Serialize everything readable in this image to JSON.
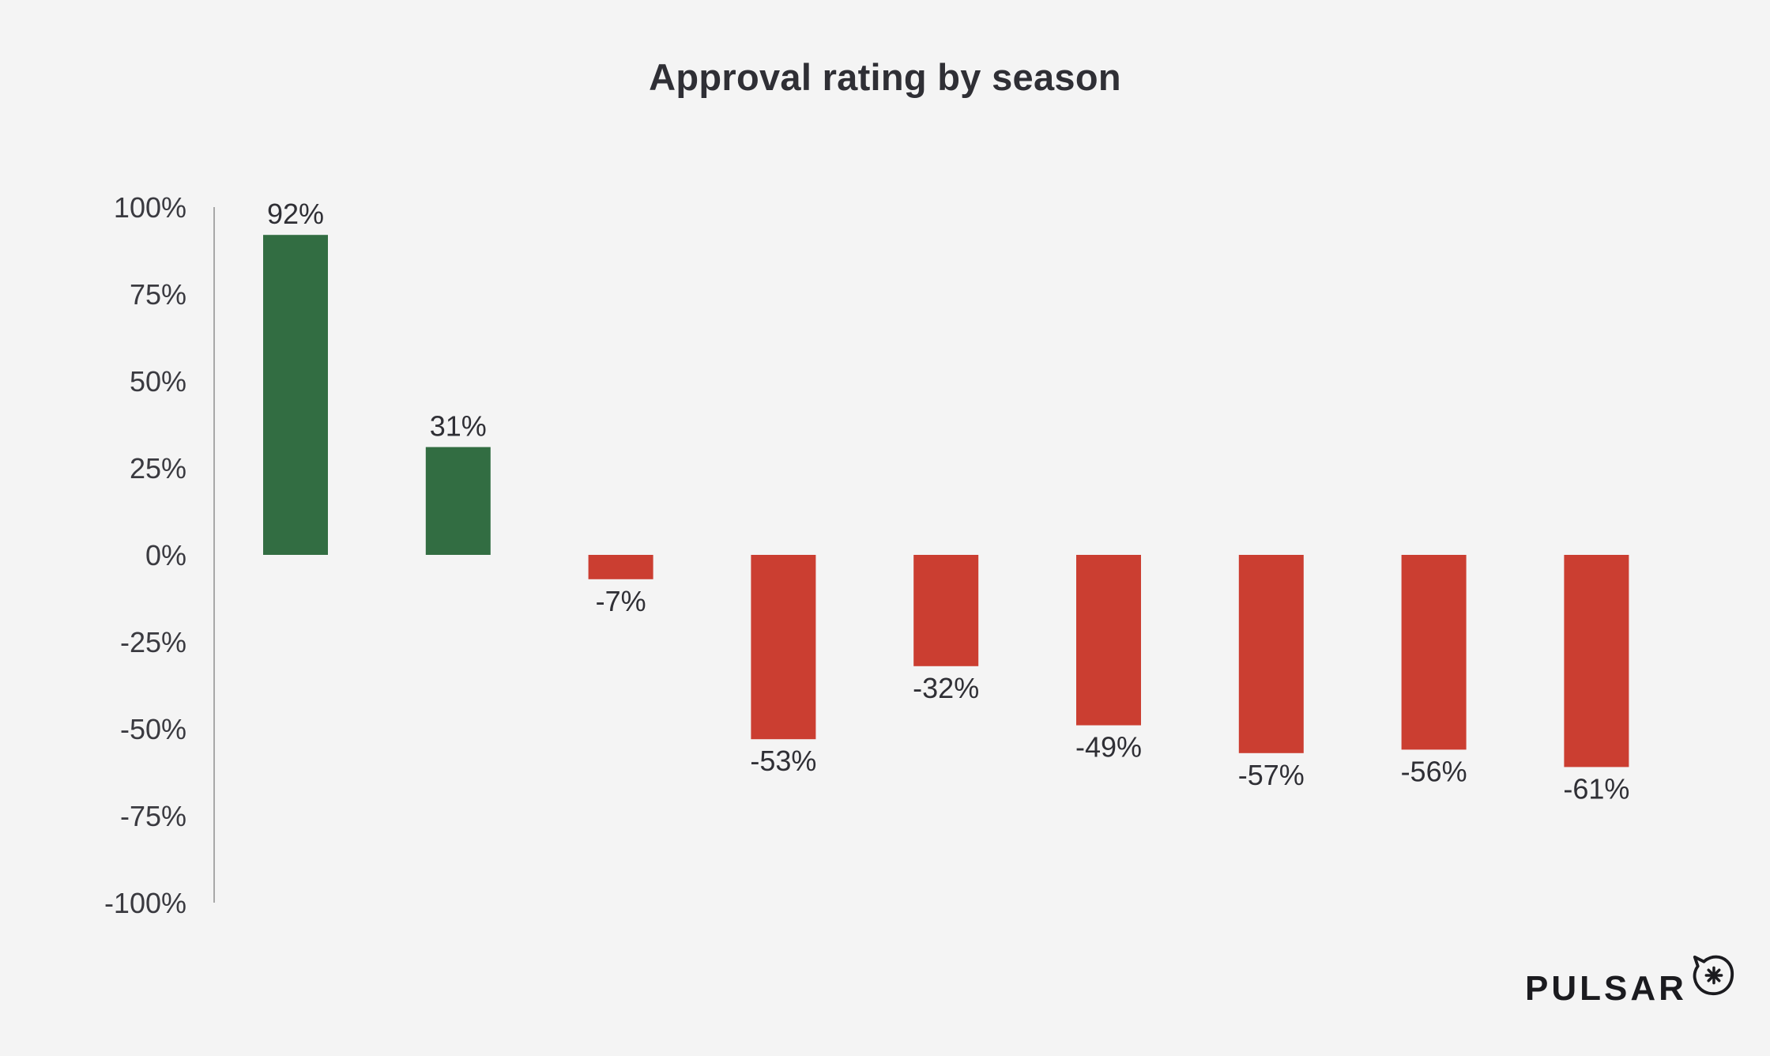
{
  "chart_data": {
    "type": "bar",
    "title": "Approval rating by season",
    "xlabel": "",
    "ylabel": "",
    "ylim": [
      -100,
      100
    ],
    "yticks": [
      100,
      75,
      50,
      25,
      0,
      -25,
      -50,
      -75,
      -100
    ],
    "ytick_labels": [
      "100%",
      "75%",
      "50%",
      "25%",
      "0%",
      "-25%",
      "-50%",
      "-75%",
      "-100%"
    ],
    "categories": [
      "",
      "",
      "",
      "",
      "",
      "",
      "",
      "",
      ""
    ],
    "values": [
      92,
      31,
      -7,
      -53,
      -32,
      -49,
      -57,
      -56,
      -61
    ],
    "data_labels": [
      "92%",
      "31%",
      "-7%",
      "-53%",
      "-32%",
      "-49%",
      "-57%",
      "-56%",
      "-61%"
    ],
    "colors": {
      "positive": "#326d42",
      "negative": "#cb3e31",
      "axis": "#a8a8a8"
    },
    "grid": false,
    "legend": "none"
  },
  "brand": {
    "name": "PULSAR",
    "icon": "pulsar-logo-icon"
  }
}
